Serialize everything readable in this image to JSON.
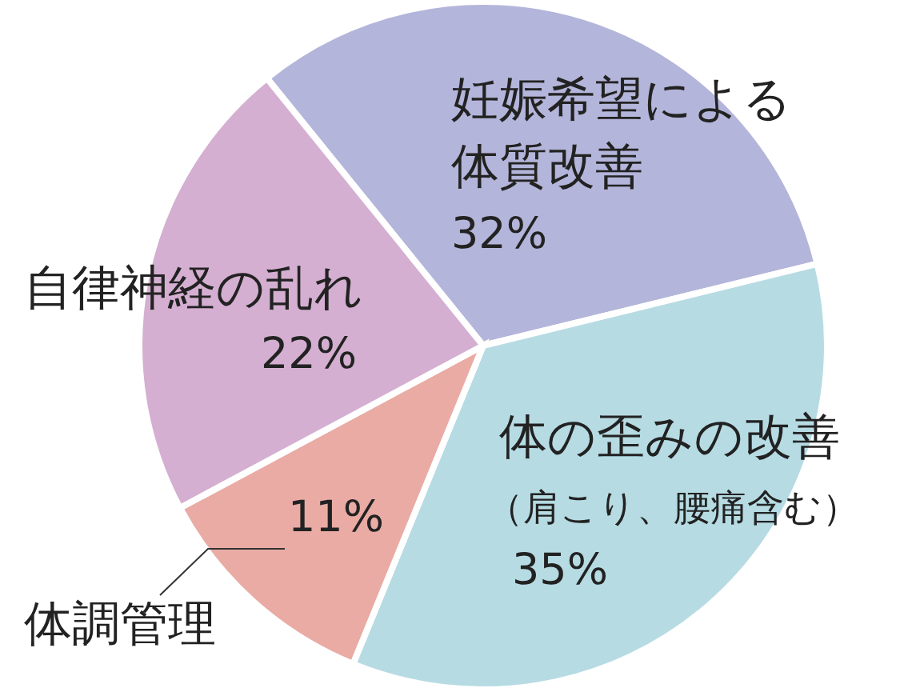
{
  "chart_data": {
    "type": "pie",
    "categories": [
      "妊娠希望による体質改善",
      "体の歪みの改善（肩こり、腰痛含む）",
      "体調管理",
      "自律神経の乱れ"
    ],
    "values": [
      32,
      35,
      11,
      22
    ],
    "value_labels": [
      "32%",
      "35%",
      "11%",
      "22%"
    ],
    "colors": [
      "#b4b5da",
      "#b6dbe3",
      "#e9aba4",
      "#d4afd1"
    ]
  }
}
